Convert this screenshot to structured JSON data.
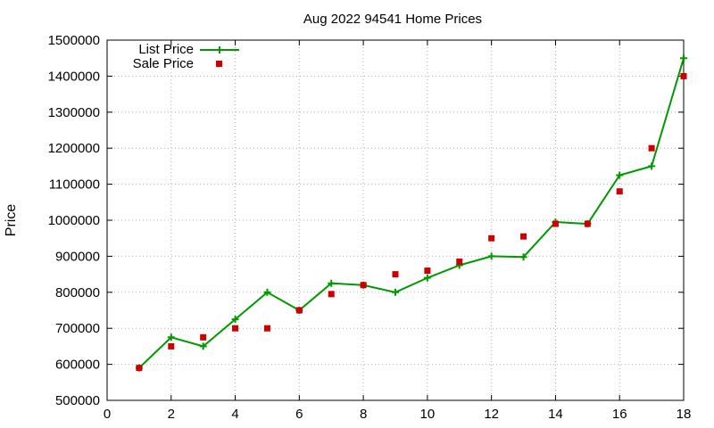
{
  "chart_data": {
    "type": "line",
    "title": "Aug 2022 94541 Home Prices",
    "xlabel": "",
    "ylabel": "Price",
    "xlim": [
      0,
      18
    ],
    "ylim": [
      500000,
      1500000
    ],
    "x_ticks": [
      "0",
      "2",
      "4",
      "6",
      "8",
      "10",
      "12",
      "14",
      "16",
      "18"
    ],
    "y_ticks": [
      "500000",
      "600000",
      "700000",
      "800000",
      "900000",
      "1000000",
      "1100000",
      "1200000",
      "1300000",
      "1400000",
      "1500000"
    ],
    "grid": true,
    "legend_position": "top-left",
    "series": [
      {
        "name": "List Price",
        "style": "line-with-plus-markers",
        "color": "#009900",
        "x": [
          1,
          2,
          3,
          4,
          5,
          6,
          7,
          8,
          9,
          10,
          11,
          12,
          13,
          14,
          15,
          16,
          17,
          18
        ],
        "y": [
          590000,
          675000,
          650000,
          725000,
          800000,
          750000,
          825000,
          820000,
          800000,
          840000,
          875000,
          900000,
          898000,
          995000,
          990000,
          1125000,
          1150000,
          1450000
        ]
      },
      {
        "name": "Sale Price",
        "style": "square-points",
        "color": "#cc0000",
        "x": [
          1,
          2,
          3,
          4,
          5,
          6,
          7,
          8,
          9,
          10,
          11,
          12,
          13,
          14,
          15,
          16,
          17,
          18
        ],
        "y": [
          590000,
          650000,
          675000,
          700000,
          700000,
          750000,
          795000,
          820000,
          850000,
          860000,
          885000,
          950000,
          955000,
          990000,
          990000,
          1080000,
          1200000,
          1400000
        ]
      }
    ]
  }
}
